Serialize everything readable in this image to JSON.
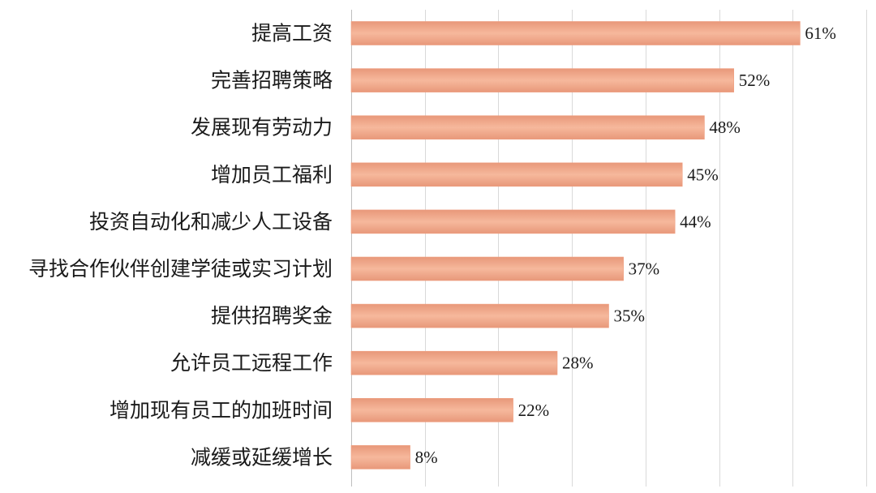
{
  "chart_data": {
    "type": "bar",
    "orientation": "horizontal",
    "categories": [
      "提高工资",
      "完善招聘策略",
      "发展现有劳动力",
      "增加员工福利",
      "投资自动化和减少人工设备",
      "寻找合作伙伴创建学徒或实习计划",
      "提供招聘奖金",
      "允许员工远程工作",
      "增加现有员工的加班时间",
      "减缓或延缓增长"
    ],
    "values": [
      61,
      52,
      48,
      45,
      44,
      37,
      35,
      28,
      22,
      8
    ],
    "value_labels": [
      "61%",
      "52%",
      "48%",
      "45%",
      "44%",
      "37%",
      "35%",
      "28%",
      "22%",
      "8%"
    ],
    "xlim": [
      0,
      70
    ],
    "x_gridlines": [
      0,
      10,
      20,
      30,
      40,
      50,
      60,
      70
    ],
    "grid": true,
    "legend": "none",
    "title": "",
    "xlabel": "",
    "ylabel": "",
    "colors": {
      "bar_fill_light": "#f6b89c",
      "bar_fill_dark": "#e8987a",
      "bar_stroke": "#ef9f80",
      "grid": "#d9d9d9",
      "text": "#1a1a1a"
    }
  }
}
